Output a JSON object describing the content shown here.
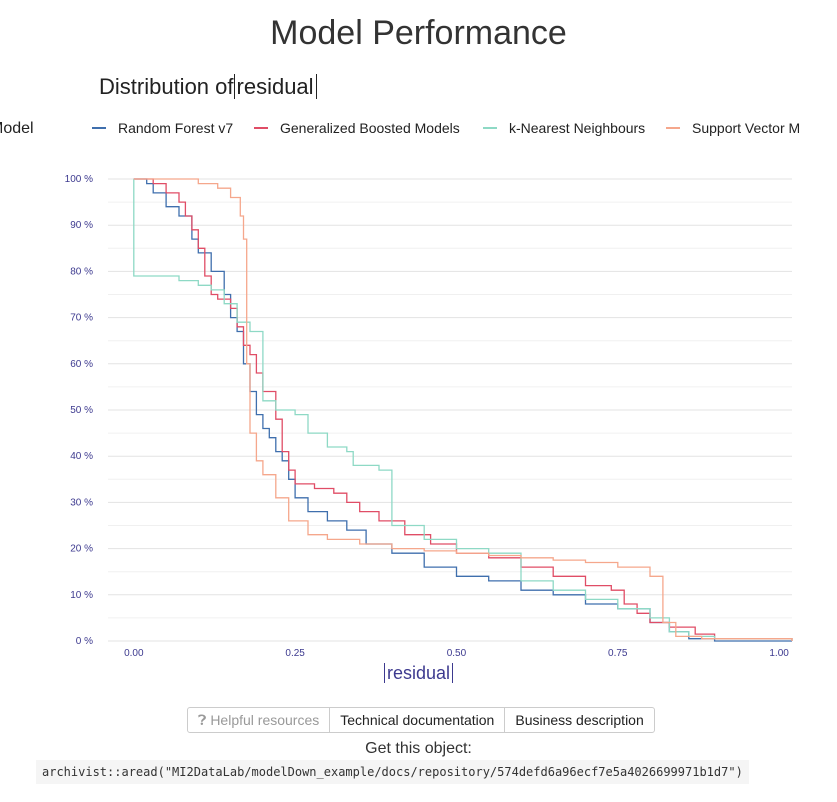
{
  "page": {
    "title": "Model Performance",
    "plot_title_prefix": "Distribution of",
    "plot_title_var": "residual",
    "legend_title": "Model",
    "buttons": [
      {
        "icon": "question-icon",
        "label": "Helpful resources"
      },
      {
        "label": "Technical documentation"
      },
      {
        "label": "Business description"
      }
    ],
    "get_object_label": "Get this object:",
    "code": "archivist::aread(\"MI2DataLab/modelDown_example/docs/repository/574defd6a96ecf7e5a4026699971b1d7\")"
  },
  "chart_data": {
    "type": "line",
    "title": "Distribution of residual",
    "xlabel": "residual",
    "ylabel": "",
    "xlim": [
      -0.04,
      1.02
    ],
    "ylim": [
      0,
      100
    ],
    "x_ticks": [
      "0.00",
      "0.25",
      "0.50",
      "0.75",
      "1.00"
    ],
    "y_ticks": [
      "0 %",
      "10 %",
      "20 %",
      "30 %",
      "40 %",
      "50 %",
      "60 %",
      "70 %",
      "80 %",
      "90 %",
      "100 %"
    ],
    "grid": true,
    "legend_position": "top",
    "series": [
      {
        "name": "Random Forest v7",
        "color": "#3f6fad",
        "points": [
          [
            0,
            100
          ],
          [
            0.02,
            99
          ],
          [
            0.03,
            97
          ],
          [
            0.05,
            94
          ],
          [
            0.07,
            92
          ],
          [
            0.09,
            87
          ],
          [
            0.1,
            84
          ],
          [
            0.12,
            80
          ],
          [
            0.14,
            75
          ],
          [
            0.15,
            70
          ],
          [
            0.16,
            67
          ],
          [
            0.17,
            60
          ],
          [
            0.18,
            54
          ],
          [
            0.19,
            49
          ],
          [
            0.2,
            46
          ],
          [
            0.21,
            44
          ],
          [
            0.22,
            41
          ],
          [
            0.23,
            39
          ],
          [
            0.24,
            35
          ],
          [
            0.25,
            31
          ],
          [
            0.27,
            28
          ],
          [
            0.3,
            26
          ],
          [
            0.33,
            24
          ],
          [
            0.36,
            21
          ],
          [
            0.4,
            19
          ],
          [
            0.45,
            16
          ],
          [
            0.5,
            14
          ],
          [
            0.55,
            13
          ],
          [
            0.6,
            11
          ],
          [
            0.65,
            10
          ],
          [
            0.7,
            8
          ],
          [
            0.75,
            7
          ],
          [
            0.8,
            4
          ],
          [
            0.83,
            2
          ],
          [
            0.86,
            0.5
          ],
          [
            0.9,
            0
          ],
          [
            1.02,
            0
          ]
        ]
      },
      {
        "name": "Generalized Boosted Models",
        "color": "#e04d66",
        "points": [
          [
            0,
            100
          ],
          [
            0.03,
            99
          ],
          [
            0.05,
            97
          ],
          [
            0.07,
            95
          ],
          [
            0.08,
            92
          ],
          [
            0.09,
            89
          ],
          [
            0.1,
            85
          ],
          [
            0.11,
            79
          ],
          [
            0.12,
            75
          ],
          [
            0.13,
            74
          ],
          [
            0.15,
            72
          ],
          [
            0.16,
            68
          ],
          [
            0.17,
            64
          ],
          [
            0.18,
            62
          ],
          [
            0.19,
            58
          ],
          [
            0.2,
            54
          ],
          [
            0.22,
            48
          ],
          [
            0.23,
            41
          ],
          [
            0.24,
            37
          ],
          [
            0.25,
            34
          ],
          [
            0.28,
            33
          ],
          [
            0.31,
            32
          ],
          [
            0.33,
            30
          ],
          [
            0.35,
            28
          ],
          [
            0.38,
            26
          ],
          [
            0.42,
            23
          ],
          [
            0.46,
            21
          ],
          [
            0.5,
            19
          ],
          [
            0.55,
            18
          ],
          [
            0.6,
            16
          ],
          [
            0.65,
            14
          ],
          [
            0.7,
            12
          ],
          [
            0.74,
            11
          ],
          [
            0.76,
            8
          ],
          [
            0.78,
            6
          ],
          [
            0.8,
            4
          ],
          [
            0.83,
            3
          ],
          [
            0.87,
            1.5
          ],
          [
            0.9,
            0.5
          ],
          [
            1.02,
            0
          ]
        ]
      },
      {
        "name": "k-Nearest Neighbours",
        "color": "#8ed9c5",
        "points": [
          [
            0,
            100
          ],
          [
            0,
            79
          ],
          [
            0.07,
            78
          ],
          [
            0.1,
            77
          ],
          [
            0.12,
            76
          ],
          [
            0.14,
            73
          ],
          [
            0.16,
            69
          ],
          [
            0.18,
            67
          ],
          [
            0.2,
            52
          ],
          [
            0.22,
            50
          ],
          [
            0.25,
            49
          ],
          [
            0.27,
            45
          ],
          [
            0.3,
            42
          ],
          [
            0.33,
            41
          ],
          [
            0.34,
            38
          ],
          [
            0.38,
            37
          ],
          [
            0.4,
            36.5
          ],
          [
            0.4,
            25
          ],
          [
            0.45,
            22
          ],
          [
            0.5,
            20
          ],
          [
            0.55,
            19
          ],
          [
            0.6,
            18
          ],
          [
            0.6,
            13
          ],
          [
            0.65,
            11
          ],
          [
            0.7,
            9
          ],
          [
            0.75,
            7
          ],
          [
            0.8,
            5
          ],
          [
            0.83,
            2
          ],
          [
            0.86,
            1
          ],
          [
            0.9,
            0.5
          ],
          [
            1.02,
            0
          ]
        ]
      },
      {
        "name": "Support Vector Machines",
        "color": "#f5a78c",
        "points": [
          [
            0,
            100
          ],
          [
            0.05,
            100
          ],
          [
            0.1,
            99
          ],
          [
            0.13,
            98
          ],
          [
            0.15,
            96
          ],
          [
            0.165,
            92
          ],
          [
            0.17,
            87
          ],
          [
            0.175,
            60
          ],
          [
            0.18,
            45
          ],
          [
            0.19,
            39
          ],
          [
            0.2,
            36
          ],
          [
            0.22,
            31
          ],
          [
            0.24,
            26
          ],
          [
            0.27,
            23
          ],
          [
            0.3,
            22
          ],
          [
            0.35,
            21
          ],
          [
            0.4,
            20
          ],
          [
            0.45,
            19.5
          ],
          [
            0.5,
            19
          ],
          [
            0.55,
            18.5
          ],
          [
            0.6,
            18
          ],
          [
            0.65,
            17.5
          ],
          [
            0.7,
            17
          ],
          [
            0.75,
            16
          ],
          [
            0.8,
            14
          ],
          [
            0.82,
            12
          ],
          [
            0.82,
            4
          ],
          [
            0.84,
            1
          ],
          [
            0.88,
            0.5
          ],
          [
            1.02,
            0
          ]
        ]
      }
    ]
  }
}
